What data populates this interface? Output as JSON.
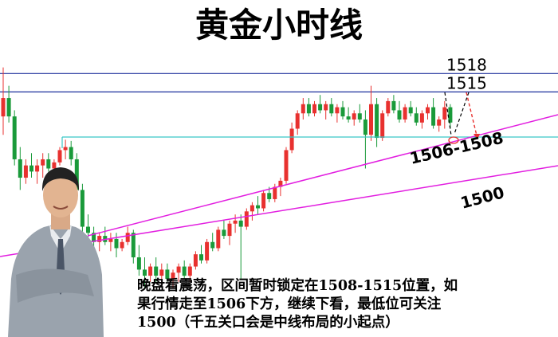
{
  "title": "黄金小时线",
  "chart_data": {
    "type": "candlestick",
    "ylim": [
      1475,
      1530
    ],
    "up_color": "#e8312f",
    "down_color": "#1a9a3a",
    "candles": [
      [
        1511,
        1519,
        1508,
        1514
      ],
      [
        1514,
        1516,
        1510,
        1511
      ],
      [
        1511,
        1512,
        1503,
        1504
      ],
      [
        1504,
        1506,
        1499,
        1501
      ],
      [
        1501,
        1504,
        1500,
        1503
      ],
      [
        1503,
        1505,
        1501,
        1502
      ],
      [
        1502,
        1504,
        1500,
        1503
      ],
      [
        1503,
        1505,
        1501,
        1504
      ],
      [
        1504,
        1505,
        1502,
        1502.5
      ],
      [
        1502.5,
        1504,
        1501,
        1503.5
      ],
      [
        1503.5,
        1506,
        1503,
        1505.5
      ],
      [
        1505.5,
        1507.2,
        1504,
        1506
      ],
      [
        1506,
        1507,
        1503,
        1504
      ],
      [
        1504,
        1505,
        1498,
        1499
      ],
      [
        1499,
        1500,
        1492,
        1493
      ],
      [
        1493,
        1495,
        1490,
        1492
      ],
      [
        1492,
        1493,
        1489,
        1490.5
      ],
      [
        1490.5,
        1492,
        1489,
        1491.5
      ],
      [
        1491.5,
        1493,
        1490,
        1490.5
      ],
      [
        1490.5,
        1492,
        1489,
        1491
      ],
      [
        1491,
        1492,
        1488,
        1489.5
      ],
      [
        1489.5,
        1491,
        1489,
        1490.5
      ],
      [
        1490.5,
        1493,
        1490,
        1492
      ],
      [
        1492,
        1492.5,
        1487,
        1488
      ],
      [
        1488,
        1490,
        1485,
        1486
      ],
      [
        1486,
        1488,
        1483,
        1485
      ],
      [
        1485,
        1487,
        1484,
        1486.5
      ],
      [
        1486.5,
        1488,
        1484,
        1485
      ],
      [
        1485,
        1487,
        1483.5,
        1486
      ],
      [
        1486,
        1487,
        1484,
        1484.5
      ],
      [
        1484.5,
        1486,
        1483,
        1485.5
      ],
      [
        1485.5,
        1487,
        1484,
        1486.5
      ],
      [
        1486.5,
        1487.5,
        1484.5,
        1485
      ],
      [
        1485,
        1487,
        1484,
        1486.5
      ],
      [
        1486.5,
        1489,
        1486,
        1488.5
      ],
      [
        1488.5,
        1490,
        1487,
        1487.5
      ],
      [
        1487.5,
        1491,
        1487,
        1490.5
      ],
      [
        1490.5,
        1492,
        1489,
        1489.5
      ],
      [
        1489.5,
        1493,
        1489,
        1492.5
      ],
      [
        1492.5,
        1494,
        1491,
        1491.5
      ],
      [
        1491.5,
        1494,
        1490,
        1493.5
      ],
      [
        1493.5,
        1495,
        1492,
        1494
      ],
      [
        1494,
        1495,
        1484.5,
        1493
      ],
      [
        1493,
        1496,
        1492.5,
        1495.5
      ],
      [
        1495.5,
        1497,
        1494,
        1496.5
      ],
      [
        1496.5,
        1498,
        1495,
        1496
      ],
      [
        1496,
        1499,
        1495.5,
        1498.5
      ],
      [
        1498.5,
        1499.5,
        1497,
        1497.5
      ],
      [
        1497.5,
        1500,
        1497,
        1499.5
      ],
      [
        1499.5,
        1501,
        1498,
        1500.5
      ],
      [
        1500.5,
        1506,
        1500,
        1505.5
      ],
      [
        1505.5,
        1510,
        1505,
        1509
      ],
      [
        1509,
        1512,
        1508,
        1511.5
      ],
      [
        1511.5,
        1514,
        1510.5,
        1513
      ],
      [
        1513,
        1514,
        1511,
        1511.5
      ],
      [
        1511.5,
        1513.5,
        1511,
        1513
      ],
      [
        1513,
        1514.5,
        1511.5,
        1512
      ],
      [
        1512,
        1513.5,
        1510.5,
        1513
      ],
      [
        1513,
        1514,
        1511,
        1511.5
      ],
      [
        1511.5,
        1513,
        1510,
        1512.5
      ],
      [
        1512.5,
        1513.5,
        1510.5,
        1511
      ],
      [
        1511,
        1512.5,
        1510,
        1510.5
      ],
      [
        1510.5,
        1512,
        1509.5,
        1511.5
      ],
      [
        1511.5,
        1513,
        1510,
        1510.5
      ],
      [
        1510.5,
        1512,
        1502.5,
        1508
      ],
      [
        1508,
        1516,
        1507,
        1513
      ],
      [
        1513,
        1514,
        1506,
        1507.5
      ],
      [
        1507.5,
        1512,
        1507,
        1511.5
      ],
      [
        1511.5,
        1514,
        1511,
        1513.5
      ],
      [
        1513.5,
        1514.5,
        1511.5,
        1512
      ],
      [
        1512,
        1513.5,
        1510,
        1510.5
      ],
      [
        1510.5,
        1513,
        1510,
        1512.5
      ],
      [
        1512.5,
        1513.5,
        1511,
        1511.5
      ],
      [
        1511.5,
        1512.5,
        1509.5,
        1510
      ],
      [
        1510,
        1512,
        1509,
        1511.5
      ],
      [
        1511.5,
        1513,
        1510.5,
        1512.5
      ],
      [
        1512.5,
        1514,
        1509,
        1509.5
      ],
      [
        1509.5,
        1511,
        1508.5,
        1510.5
      ],
      [
        1510.5,
        1513.5,
        1509,
        1512.5
      ],
      [
        1512.5,
        1513,
        1509,
        1510
      ]
    ],
    "levels": [
      1518,
      1515
    ],
    "level_color": "#1c2f9c",
    "annotations": [
      "1506-1508",
      "1500"
    ]
  },
  "note": {
    "lines": [
      "晚盘看震荡，区间暂时锁定在1508-1515位置，如",
      "果行情走至1506下方，继续下看，最低位可关注",
      "1500（千五关口会是中线布局的小起点）"
    ]
  }
}
